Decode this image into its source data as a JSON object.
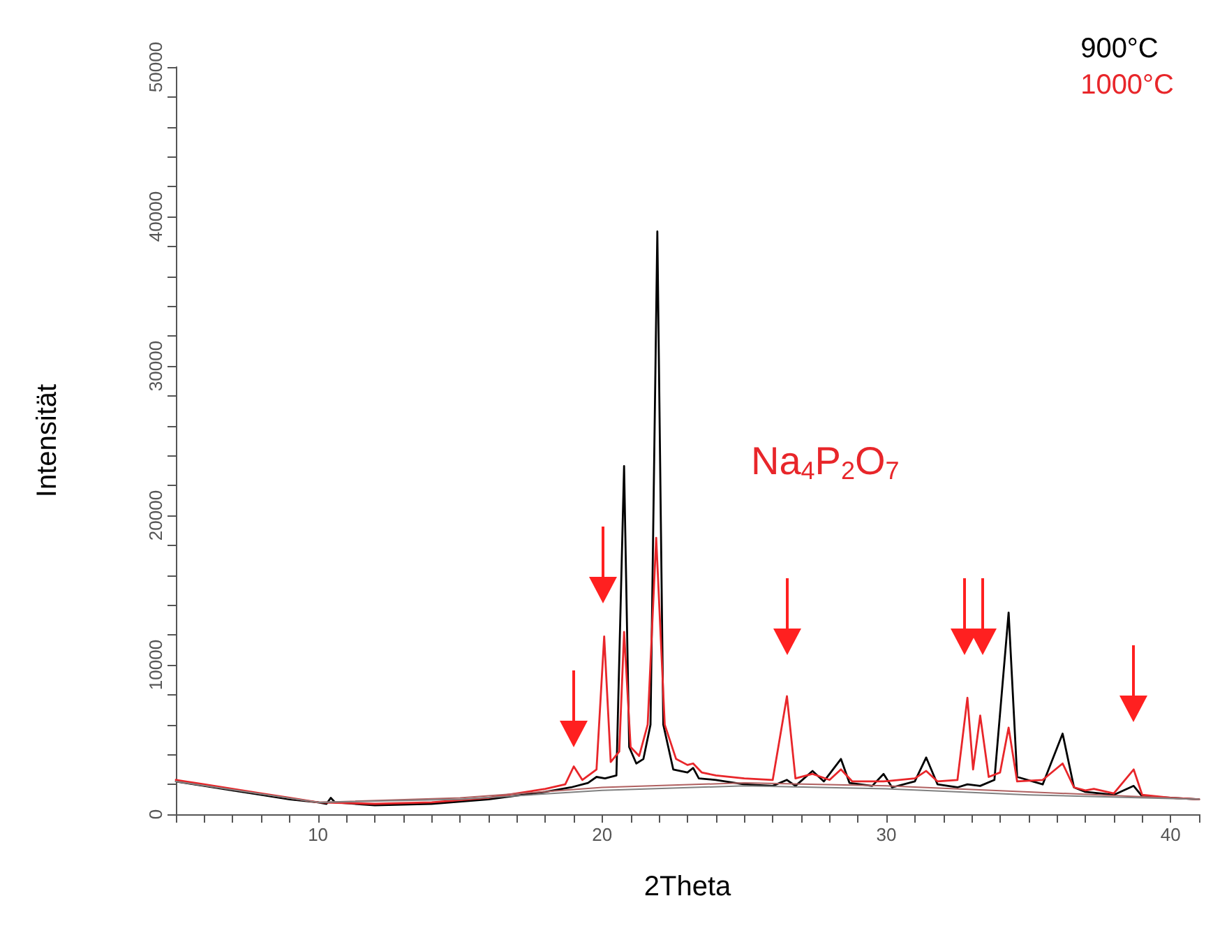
{
  "chart_data": {
    "type": "line",
    "xlabel": "2Theta",
    "ylabel": "Intensität",
    "annotations": [
      "Na$_{4}$P$_{2}$O$_{7}$"
    ],
    "xlim": [
      5,
      41
    ],
    "ylim": [
      0,
      50000
    ],
    "xticks": [
      {
        "value": 5,
        "label": null
      },
      {
        "value": 6,
        "label": null
      },
      {
        "value": 7,
        "label": null
      },
      {
        "value": 8,
        "label": null
      },
      {
        "value": 9,
        "label": null
      },
      10,
      {
        "value": 11,
        "label": null
      },
      {
        "value": 12,
        "label": null
      },
      {
        "value": 13,
        "label": null
      },
      {
        "value": 14,
        "label": null
      },
      {
        "value": 15,
        "label": null
      },
      {
        "value": 16,
        "label": null
      },
      {
        "value": 17,
        "label": null
      },
      {
        "value": 18,
        "label": null
      },
      {
        "value": 19,
        "label": null
      },
      20,
      {
        "value": 21,
        "label": null
      },
      {
        "value": 22,
        "label": null
      },
      {
        "value": 23,
        "label": null
      },
      {
        "value": 24,
        "label": null
      },
      {
        "value": 25,
        "label": null
      },
      {
        "value": 26,
        "label": null
      },
      {
        "value": 27,
        "label": null
      },
      {
        "value": 28,
        "label": null
      },
      {
        "value": 29,
        "label": null
      },
      30,
      {
        "value": 31,
        "label": null
      },
      {
        "value": 32,
        "label": null
      },
      {
        "value": 33,
        "label": null
      },
      {
        "value": 34,
        "label": null
      },
      {
        "value": 35,
        "label": null
      },
      {
        "value": 36,
        "label": null
      },
      {
        "value": 37,
        "label": null
      },
      {
        "value": 38,
        "label": null
      },
      {
        "value": 39,
        "label": null
      },
      40,
      {
        "value": 41,
        "label": null
      }
    ],
    "yticks": [
      0,
      {
        "value": 2000,
        "label": null
      },
      {
        "value": 4000,
        "label": null
      },
      {
        "value": 6000,
        "label": null
      },
      {
        "value": 8000,
        "label": null
      },
      10000,
      {
        "value": 12000,
        "label": null
      },
      {
        "value": 14000,
        "label": null
      },
      {
        "value": 16000,
        "label": null
      },
      {
        "value": 18000,
        "label": null
      },
      20000,
      {
        "value": 22000,
        "label": null
      },
      {
        "value": 24000,
        "label": null
      },
      {
        "value": 26000,
        "label": null
      },
      {
        "value": 28000,
        "label": null
      },
      30000,
      {
        "value": 32000,
        "label": null
      },
      {
        "value": 34000,
        "label": null
      },
      {
        "value": 36000,
        "label": null
      },
      {
        "value": 38000,
        "label": null
      },
      40000,
      {
        "value": 42000,
        "label": null
      },
      {
        "value": 44000,
        "label": null
      },
      {
        "value": 46000,
        "label": null
      },
      {
        "value": 48000,
        "label": null
      },
      50000
    ],
    "grid": false,
    "legend": "top right",
    "marker": "none",
    "line_style": "solid",
    "series": [
      {
        "name": "900°C",
        "color": "#000000",
        "x": [
          5,
          6,
          7,
          8,
          9,
          10,
          10.3,
          10.45,
          10.6,
          12,
          14,
          16,
          18,
          18.9,
          19.5,
          19.8,
          20.1,
          20.5,
          20.77,
          20.95,
          21.2,
          21.45,
          21.7,
          21.94,
          22.15,
          22.5,
          23.0,
          23.2,
          23.4,
          24,
          25,
          26,
          26.5,
          26.8,
          27.4,
          27.8,
          28.4,
          28.7,
          29.5,
          29.9,
          30.2,
          31,
          31.4,
          31.8,
          32.5,
          32.85,
          33.3,
          33.8,
          34.3,
          34.6,
          35.5,
          36.2,
          36.6,
          37,
          38,
          38.7,
          39,
          40,
          41
        ],
        "values": [
          2200,
          1900,
          1600,
          1300,
          1000,
          800,
          700,
          1100,
          800,
          600,
          700,
          1000,
          1500,
          1800,
          2100,
          2500,
          2400,
          2600,
          23300,
          4500,
          3400,
          3700,
          6000,
          39000,
          6000,
          3000,
          2800,
          3100,
          2400,
          2300,
          2000,
          1900,
          2300,
          1900,
          2900,
          2200,
          3700,
          2100,
          1900,
          2700,
          1800,
          2200,
          3800,
          2000,
          1800,
          2000,
          1900,
          2300,
          13500,
          2500,
          2000,
          5400,
          1800,
          1500,
          1300,
          1900,
          1200,
          1100,
          1000
        ]
      },
      {
        "name": "1000°C",
        "color": "#e8262a",
        "x": [
          5,
          6,
          7,
          8,
          9,
          10,
          12,
          14,
          16,
          18,
          18.7,
          19.0,
          19.3,
          19.8,
          20.07,
          20.3,
          20.6,
          20.77,
          21.0,
          21.3,
          21.6,
          21.9,
          22.2,
          22.6,
          23.0,
          23.2,
          23.5,
          24,
          25,
          26,
          26.5,
          26.8,
          27.4,
          28,
          28.4,
          28.8,
          29.9,
          31,
          31.4,
          31.8,
          32.5,
          32.85,
          33.05,
          33.3,
          33.6,
          34,
          34.3,
          34.6,
          35.5,
          36.2,
          36.6,
          37,
          37.3,
          38,
          38.7,
          39,
          40,
          41
        ],
        "values": [
          2300,
          2000,
          1700,
          1400,
          1100,
          800,
          700,
          800,
          1100,
          1700,
          2000,
          3200,
          2300,
          3000,
          11900,
          3500,
          4200,
          12200,
          4500,
          3900,
          6000,
          18500,
          6000,
          3700,
          3300,
          3400,
          2800,
          2600,
          2400,
          2300,
          7900,
          2400,
          2700,
          2300,
          3000,
          2200,
          2200,
          2400,
          2900,
          2200,
          2300,
          7800,
          3000,
          6600,
          2500,
          2800,
          5800,
          2200,
          2300,
          3400,
          1800,
          1600,
          1700,
          1400,
          3000,
          1300,
          1100,
          1000
        ]
      },
      {
        "color": "#b06060",
        "x": [
          5,
          10,
          15,
          20,
          25,
          30,
          35,
          41
        ],
        "values": [
          2200,
          800,
          1100,
          1800,
          2100,
          1900,
          1500,
          1000
        ]
      },
      {
        "color": "#808080",
        "x": [
          5,
          10,
          15,
          20,
          25,
          30,
          35,
          41
        ],
        "values": [
          2200,
          800,
          1000,
          1600,
          1900,
          1700,
          1300,
          1000
        ]
      }
    ]
  }
}
